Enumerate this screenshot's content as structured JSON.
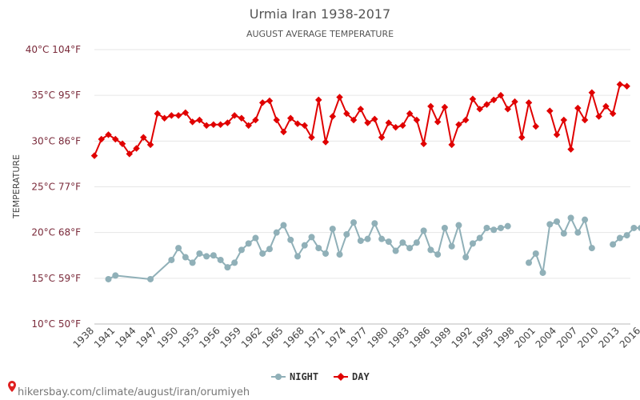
{
  "chart_data": {
    "type": "line",
    "title": "Urmia Iran 1938-2017",
    "subtitle": "AUGUST AVERAGE TEMPERATURE",
    "ylabel": "TEMPERATURE",
    "ylim": [
      10,
      40
    ],
    "y_ticks": [
      {
        "value": 10,
        "label": "10°C 50°F"
      },
      {
        "value": 15,
        "label": "15°C 59°F"
      },
      {
        "value": 20,
        "label": "20°C 68°F"
      },
      {
        "value": 25,
        "label": "25°C 77°F"
      },
      {
        "value": 30,
        "label": "30°C 86°F"
      },
      {
        "value": 35,
        "label": "35°C 95°F"
      },
      {
        "value": 40,
        "label": "40°C 104°F"
      }
    ],
    "x_ticks": [
      "1938",
      "1941",
      "1944",
      "1947",
      "1950",
      "1953",
      "1956",
      "1959",
      "1962",
      "1965",
      "1968",
      "1971",
      "1974",
      "1977",
      "1980",
      "1983",
      "1986",
      "1989",
      "1992",
      "1995",
      "1998",
      "2001",
      "2004",
      "2007",
      "2010",
      "2013",
      "2016"
    ],
    "grid": true,
    "legend_position": "bottom",
    "series": [
      {
        "name": "NIGHT",
        "color": "#90b0b8",
        "points": [
          [
            1939,
            14.9
          ],
          [
            1940,
            15.3
          ],
          [
            1945,
            14.9
          ],
          [
            1948,
            17.0
          ],
          [
            1949,
            18.3
          ],
          [
            1950,
            17.3
          ],
          [
            1951,
            16.7
          ],
          [
            1952,
            17.7
          ],
          [
            1953,
            17.4
          ],
          [
            1954,
            17.5
          ],
          [
            1955,
            17.0
          ],
          [
            1956,
            16.2
          ],
          [
            1957,
            16.7
          ],
          [
            1958,
            18.1
          ],
          [
            1959,
            18.8
          ],
          [
            1960,
            19.4
          ],
          [
            1961,
            17.7
          ],
          [
            1962,
            18.2
          ],
          [
            1963,
            20.0
          ],
          [
            1964,
            20.8
          ],
          [
            1965,
            19.2
          ],
          [
            1966,
            17.4
          ],
          [
            1967,
            18.6
          ],
          [
            1968,
            19.5
          ],
          [
            1969,
            18.3
          ],
          [
            1970,
            17.7
          ],
          [
            1971,
            20.4
          ],
          [
            1972,
            17.6
          ],
          [
            1973,
            19.8
          ],
          [
            1974,
            21.1
          ],
          [
            1975,
            19.1
          ],
          [
            1976,
            19.3
          ],
          [
            1977,
            21.0
          ],
          [
            1978,
            19.3
          ],
          [
            1979,
            19.0
          ],
          [
            1980,
            18.0
          ],
          [
            1981,
            18.9
          ],
          [
            1982,
            18.3
          ],
          [
            1983,
            18.9
          ],
          [
            1984,
            20.2
          ],
          [
            1985,
            18.1
          ],
          [
            1986,
            17.6
          ],
          [
            1987,
            20.5
          ],
          [
            1988,
            18.5
          ],
          [
            1989,
            20.8
          ],
          [
            1990,
            17.3
          ],
          [
            1991,
            18.8
          ],
          [
            1992,
            19.4
          ],
          [
            1993,
            20.5
          ],
          [
            1994,
            20.3
          ],
          [
            1995,
            20.5
          ],
          [
            1996,
            20.7
          ],
          null,
          [
            1999,
            16.7
          ],
          [
            2000,
            17.7
          ],
          [
            2001,
            15.6
          ],
          [
            2002,
            20.9
          ],
          [
            2003,
            21.2
          ],
          [
            2004,
            19.9
          ],
          [
            2005,
            21.6
          ],
          [
            2006,
            20.0
          ],
          [
            2007,
            21.4
          ],
          [
            2008,
            18.3
          ],
          null,
          [
            2011,
            18.7
          ],
          [
            2012,
            19.4
          ],
          [
            2013,
            19.7
          ],
          [
            2014,
            20.5
          ],
          [
            2015,
            20.5
          ]
        ]
      },
      {
        "name": "DAY",
        "color": "#e00000",
        "points": [
          [
            1937,
            28.4
          ],
          [
            1938,
            30.2
          ],
          [
            1939,
            30.7
          ],
          [
            1940,
            30.2
          ],
          [
            1941,
            29.7
          ],
          [
            1942,
            28.6
          ],
          [
            1943,
            29.2
          ],
          [
            1944,
            30.4
          ],
          [
            1945,
            29.6
          ],
          [
            1946,
            33.0
          ],
          [
            1947,
            32.5
          ],
          [
            1948,
            32.8
          ],
          [
            1949,
            32.8
          ],
          [
            1950,
            33.1
          ],
          [
            1951,
            32.1
          ],
          [
            1952,
            32.3
          ],
          [
            1953,
            31.7
          ],
          [
            1954,
            31.8
          ],
          [
            1955,
            31.8
          ],
          [
            1956,
            32.0
          ],
          [
            1957,
            32.8
          ],
          [
            1958,
            32.5
          ],
          [
            1959,
            31.7
          ],
          [
            1960,
            32.3
          ],
          [
            1961,
            34.2
          ],
          [
            1962,
            34.4
          ],
          [
            1963,
            32.3
          ],
          [
            1964,
            31.0
          ],
          [
            1965,
            32.5
          ],
          [
            1966,
            31.9
          ],
          [
            1967,
            31.7
          ],
          [
            1968,
            30.4
          ],
          [
            1969,
            34.5
          ],
          [
            1970,
            29.9
          ],
          [
            1971,
            32.7
          ],
          [
            1972,
            34.8
          ],
          [
            1973,
            33.0
          ],
          [
            1974,
            32.3
          ],
          [
            1975,
            33.5
          ],
          [
            1976,
            32.0
          ],
          [
            1977,
            32.4
          ],
          [
            1978,
            30.4
          ],
          [
            1979,
            32.0
          ],
          [
            1980,
            31.5
          ],
          [
            1981,
            31.7
          ],
          [
            1982,
            33.0
          ],
          [
            1983,
            32.3
          ],
          [
            1984,
            29.7
          ],
          [
            1985,
            33.8
          ],
          [
            1986,
            32.1
          ],
          [
            1987,
            33.7
          ],
          [
            1988,
            29.6
          ],
          [
            1989,
            31.8
          ],
          [
            1990,
            32.3
          ],
          [
            1991,
            34.6
          ],
          [
            1992,
            33.5
          ],
          [
            1993,
            34.0
          ],
          [
            1994,
            34.5
          ],
          [
            1995,
            35.0
          ],
          [
            1996,
            33.5
          ],
          [
            1997,
            34.3
          ],
          [
            1998,
            30.4
          ],
          [
            1999,
            34.2
          ],
          [
            2000,
            31.6
          ],
          null,
          [
            2002,
            33.3
          ],
          [
            2003,
            30.7
          ],
          [
            2004,
            32.3
          ],
          [
            2005,
            29.1
          ],
          [
            2006,
            33.6
          ],
          [
            2007,
            32.3
          ],
          [
            2008,
            35.3
          ],
          [
            2009,
            32.7
          ],
          [
            2010,
            33.8
          ],
          [
            2011,
            33.0
          ],
          [
            2012,
            36.2
          ],
          [
            2013,
            36.0
          ]
        ]
      }
    ]
  },
  "footer": {
    "text": "hikersbay.com/climate/august/iran/orumiyeh"
  }
}
